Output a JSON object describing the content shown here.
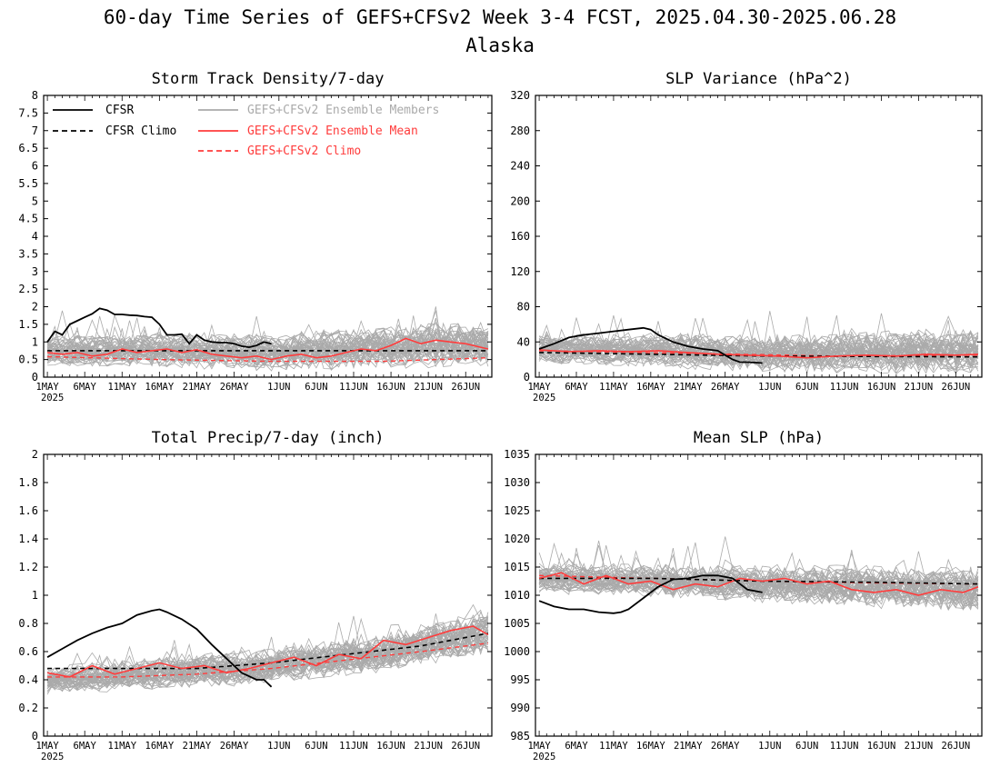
{
  "title": {
    "line1": "60-day Time Series of GEFS+CFSv2 Week 3-4 FCST, 2025.04.30-2025.06.28",
    "line2": "Alaska"
  },
  "colors": {
    "cfsr": "#000000",
    "members": "#aaaaaa",
    "ens_mean": "#ff3c3c",
    "gefs_climo": "#ff3c3c",
    "cfsr_climo": "#000000"
  },
  "x_axis": {
    "tick_labels": [
      "1MAY",
      "6MAY",
      "11MAY",
      "16MAY",
      "21MAY",
      "26MAY",
      "1JUN",
      "6JUN",
      "11JUN",
      "16JUN",
      "21JUN",
      "26JUN"
    ],
    "tick_days": [
      0,
      5,
      10,
      15,
      20,
      25,
      31,
      36,
      41,
      46,
      51,
      56
    ],
    "year_label": "2025",
    "xlim": [
      -0.5,
      59.5
    ]
  },
  "legend": {
    "cfsr": "CFSR",
    "cfsr_climo": "CFSR Climo",
    "members": "GEFS+CFSv2 Ensemble Members",
    "ens_mean": "GEFS+CFSv2 Ensemble Mean",
    "gefs_climo": "GEFS+CFSv2 Climo"
  },
  "chart_data": [
    {
      "id": "storm",
      "type": "line",
      "title": "Storm Track Density/7-day",
      "ylim": [
        0,
        8
      ],
      "yticks": [
        0,
        0.5,
        1,
        1.5,
        2,
        2.5,
        3,
        3.5,
        4,
        4.5,
        5,
        5.5,
        6,
        6.5,
        7,
        7.5,
        8
      ],
      "ytick_labels": [
        "0",
        "0.5",
        "1",
        "1.5",
        "2",
        "2.5",
        "3",
        "3.5",
        "4",
        "4.5",
        "5",
        "5.5",
        "6",
        "6.5",
        "7",
        "7.5",
        "8"
      ],
      "legend_position": "top",
      "cfsr": {
        "x": [
          0,
          1,
          2,
          3,
          4,
          5,
          6,
          7,
          8,
          9,
          10,
          11,
          12,
          13,
          14,
          15,
          16,
          17,
          18,
          19,
          20,
          21,
          22,
          23,
          24,
          25,
          26,
          27,
          28,
          29,
          30
        ],
        "y": [
          1.0,
          1.3,
          1.2,
          1.5,
          1.6,
          1.7,
          1.8,
          1.95,
          1.9,
          1.78,
          1.78,
          1.76,
          1.75,
          1.72,
          1.7,
          1.5,
          1.2,
          1.2,
          1.22,
          0.95,
          1.2,
          1.05,
          1.0,
          0.98,
          0.98,
          0.95,
          0.88,
          0.85,
          0.9,
          1.0,
          0.95
        ]
      },
      "cfsr_climo": {
        "x": [
          0,
          59
        ],
        "y": [
          0.75,
          0.75
        ]
      },
      "gefs_climo": {
        "x": [
          0,
          15,
          30,
          45,
          59
        ],
        "y": [
          0.58,
          0.5,
          0.45,
          0.45,
          0.55
        ]
      },
      "ens_mean": {
        "x": [
          0,
          2,
          4,
          6,
          8,
          10,
          12,
          14,
          16,
          18,
          20,
          22,
          24,
          26,
          28,
          30,
          32,
          34,
          36,
          38,
          40,
          42,
          44,
          46,
          48,
          50,
          52,
          54,
          56,
          58,
          59
        ],
        "y": [
          0.7,
          0.65,
          0.7,
          0.6,
          0.65,
          0.8,
          0.7,
          0.75,
          0.8,
          0.7,
          0.78,
          0.65,
          0.6,
          0.55,
          0.6,
          0.5,
          0.6,
          0.65,
          0.55,
          0.6,
          0.7,
          0.8,
          0.75,
          0.9,
          1.1,
          0.95,
          1.05,
          1.0,
          0.95,
          0.85,
          0.8
        ]
      },
      "members": {
        "count": 48,
        "mean_curve": {
          "x": [
            0,
            15,
            30,
            45,
            59
          ],
          "y": [
            0.75,
            0.78,
            0.7,
            0.85,
            0.95
          ]
        }
      }
    },
    {
      "id": "slpvar",
      "type": "line",
      "title": "SLP Variance (hPa^2)",
      "ylim": [
        0,
        320
      ],
      "yticks": [
        0,
        40,
        80,
        120,
        160,
        200,
        240,
        280,
        320
      ],
      "ytick_labels": [
        "0",
        "40",
        "80",
        "120",
        "160",
        "200",
        "240",
        "280",
        "320"
      ],
      "cfsr": {
        "x": [
          0,
          2,
          4,
          6,
          8,
          10,
          12,
          14,
          15,
          16,
          18,
          20,
          22,
          24,
          25,
          26,
          27,
          28,
          30
        ],
        "y": [
          32,
          38,
          45,
          48,
          50,
          52,
          54,
          56,
          54,
          48,
          40,
          35,
          32,
          30,
          25,
          20,
          17,
          17,
          16
        ]
      },
      "cfsr_climo": {
        "x": [
          0,
          15,
          30,
          59
        ],
        "y": [
          28,
          26,
          24,
          23
        ]
      },
      "gefs_climo": {
        "x": [
          0,
          20,
          40,
          59
        ],
        "y": [
          30,
          27,
          24,
          25
        ]
      },
      "ens_mean": {
        "x": [
          0,
          4,
          8,
          12,
          16,
          20,
          24,
          28,
          32,
          36,
          40,
          44,
          48,
          52,
          56,
          59
        ],
        "y": [
          31,
          29,
          30,
          29,
          30,
          28,
          26,
          25,
          24,
          22,
          24,
          25,
          24,
          26,
          25,
          26
        ]
      },
      "members": {
        "count": 48,
        "mean_curve": {
          "x": [
            0,
            15,
            30,
            45,
            59
          ],
          "y": [
            32,
            31,
            27,
            28,
            30
          ]
        }
      }
    },
    {
      "id": "precip",
      "type": "line",
      "title": "Total Precip/7-day (inch)",
      "ylim": [
        0,
        2
      ],
      "yticks": [
        0,
        0.2,
        0.4,
        0.6,
        0.8,
        1,
        1.2,
        1.4,
        1.6,
        1.8,
        2
      ],
      "ytick_labels": [
        "0",
        "0.2",
        "0.4",
        "0.6",
        "0.8",
        "1",
        "1.2",
        "1.4",
        "1.6",
        "1.8",
        "2"
      ],
      "cfsr": {
        "x": [
          0,
          2,
          4,
          6,
          8,
          10,
          12,
          14,
          15,
          16,
          18,
          20,
          22,
          24,
          26,
          28,
          29,
          30
        ],
        "y": [
          0.56,
          0.62,
          0.68,
          0.73,
          0.77,
          0.8,
          0.86,
          0.89,
          0.9,
          0.88,
          0.83,
          0.76,
          0.65,
          0.55,
          0.45,
          0.4,
          0.4,
          0.35
        ]
      },
      "cfsr_climo": {
        "x": [
          0,
          10,
          20,
          30,
          40,
          50,
          59
        ],
        "y": [
          0.48,
          0.48,
          0.48,
          0.52,
          0.58,
          0.64,
          0.73
        ]
      },
      "gefs_climo": {
        "x": [
          0,
          10,
          20,
          30,
          40,
          50,
          59
        ],
        "y": [
          0.42,
          0.42,
          0.44,
          0.48,
          0.54,
          0.6,
          0.66
        ]
      },
      "ens_mean": {
        "x": [
          0,
          3,
          6,
          9,
          12,
          15,
          18,
          21,
          24,
          27,
          30,
          33,
          36,
          39,
          42,
          45,
          48,
          51,
          54,
          57,
          59
        ],
        "y": [
          0.45,
          0.42,
          0.5,
          0.44,
          0.48,
          0.52,
          0.48,
          0.5,
          0.45,
          0.48,
          0.52,
          0.56,
          0.5,
          0.58,
          0.55,
          0.68,
          0.65,
          0.7,
          0.75,
          0.78,
          0.72
        ]
      },
      "members": {
        "count": 48,
        "mean_curve": {
          "x": [
            0,
            15,
            30,
            45,
            59
          ],
          "y": [
            0.4,
            0.45,
            0.5,
            0.6,
            0.75
          ]
        }
      }
    },
    {
      "id": "mslp",
      "type": "line",
      "title": "Mean SLP (hPa)",
      "ylim": [
        985,
        1035
      ],
      "yticks": [
        985,
        990,
        995,
        1000,
        1005,
        1010,
        1015,
        1020,
        1025,
        1030,
        1035
      ],
      "ytick_labels": [
        "985",
        "990",
        "995",
        "1000",
        "1005",
        "1010",
        "1015",
        "1020",
        "1025",
        "1030",
        "1035"
      ],
      "cfsr": {
        "x": [
          0,
          2,
          4,
          6,
          8,
          10,
          11,
          12,
          14,
          16,
          18,
          20,
          22,
          24,
          26,
          28,
          30
        ],
        "y": [
          1009,
          1008,
          1007.5,
          1007.5,
          1007,
          1006.8,
          1007,
          1007.5,
          1009.5,
          1011.5,
          1012.8,
          1013,
          1013.5,
          1013.5,
          1013,
          1011,
          1010.5
        ]
      },
      "cfsr_climo": {
        "x": [
          0,
          15,
          30,
          45,
          59
        ],
        "y": [
          1013,
          1013,
          1012.5,
          1012.3,
          1012
        ]
      },
      "gefs_climo": {
        "x": [
          0,
          15,
          30,
          45,
          59
        ],
        "y": [
          1013.5,
          1013,
          1012.5,
          1012.2,
          1012
        ]
      },
      "ens_mean": {
        "x": [
          0,
          3,
          6,
          9,
          12,
          15,
          18,
          21,
          24,
          27,
          30,
          33,
          36,
          39,
          42,
          45,
          48,
          51,
          54,
          57,
          59
        ],
        "y": [
          1013,
          1014,
          1012,
          1013.5,
          1012,
          1012.5,
          1011,
          1012,
          1011.5,
          1013,
          1012.5,
          1013,
          1012,
          1012.5,
          1011,
          1010.5,
          1011,
          1010,
          1011,
          1010.5,
          1011.5
        ]
      },
      "members": {
        "count": 48,
        "mean_curve": {
          "x": [
            0,
            15,
            30,
            45,
            59
          ],
          "y": [
            1013,
            1012.5,
            1012,
            1011.5,
            1011
          ]
        }
      }
    }
  ]
}
